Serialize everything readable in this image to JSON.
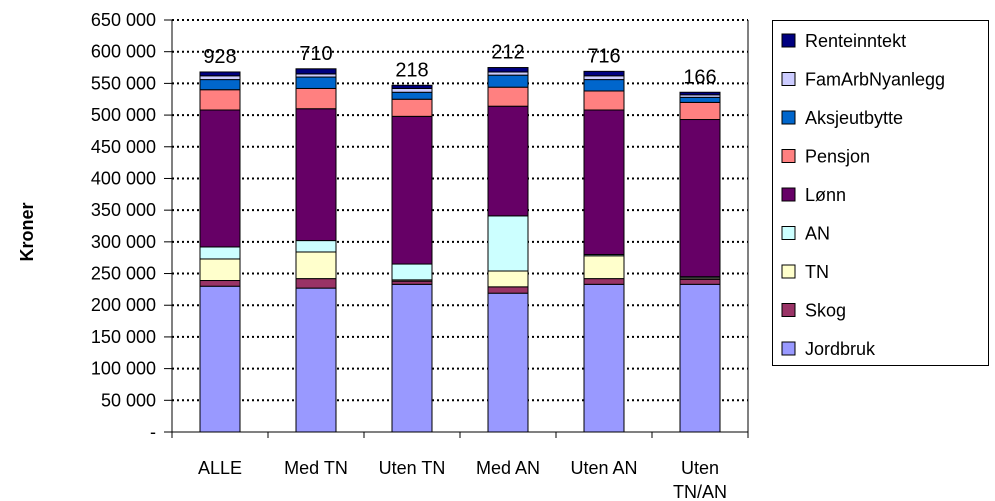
{
  "chart_data": {
    "type": "bar",
    "stacked": true,
    "ylabel": "Kroner",
    "xlabel": "",
    "ylim": [
      0,
      650000
    ],
    "ytick_step": 50000,
    "y_tick_labels": [
      "-",
      "50 000",
      "100 000",
      "150 000",
      "200 000",
      "250 000",
      "300 000",
      "350 000",
      "400 000",
      "450 000",
      "500 000",
      "550 000",
      "600 000",
      "650 000"
    ],
    "grid": "horizontal dotted",
    "legend_position": "right",
    "categories": [
      [
        "ALLE"
      ],
      [
        "Med TN"
      ],
      [
        "Uten TN"
      ],
      [
        "Med AN"
      ],
      [
        "Uten AN"
      ],
      [
        "Uten",
        "TN/AN"
      ]
    ],
    "data_labels": [
      "928",
      "710",
      "218",
      "212",
      "716",
      "166"
    ],
    "series": [
      {
        "name": "Jordbruk",
        "color": "#9999ff",
        "values": [
          230000,
          227000,
          233000,
          219000,
          233000,
          233000
        ]
      },
      {
        "name": "Skog",
        "color": "#993366",
        "values": [
          9000,
          15000,
          5000,
          10000,
          9000,
          8000
        ]
      },
      {
        "name": "TN",
        "color": "#ffffcc",
        "values": [
          34000,
          42000,
          2000,
          25000,
          36000,
          2000
        ]
      },
      {
        "name": "AN",
        "color": "#ccffff",
        "values": [
          19000,
          18000,
          25000,
          87000,
          2000,
          2000
        ]
      },
      {
        "name": "Lønn",
        "color": "#660066",
        "values": [
          216000,
          208000,
          233000,
          173000,
          228000,
          248000
        ]
      },
      {
        "name": "Pensjon",
        "color": "#ff8080",
        "values": [
          32000,
          32000,
          27000,
          30000,
          30000,
          27000
        ]
      },
      {
        "name": "Aksjeutbytte",
        "color": "#0066cc",
        "values": [
          16000,
          18000,
          11000,
          19000,
          18000,
          8000
        ]
      },
      {
        "name": "FamArbNyanlegg",
        "color": "#ccccff",
        "values": [
          6000,
          5000,
          6000,
          5000,
          6000,
          4000
        ]
      },
      {
        "name": "Renteinntekt",
        "color": "#000080",
        "values": [
          6000,
          8000,
          5000,
          7000,
          7000,
          4000
        ]
      }
    ]
  }
}
